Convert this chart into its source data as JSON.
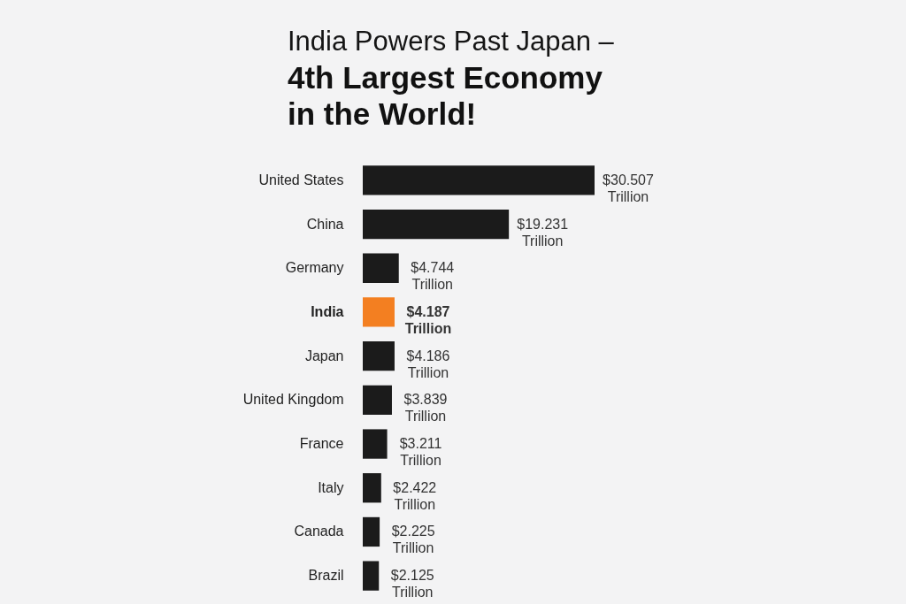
{
  "chart_data": {
    "type": "bar",
    "orientation": "horizontal",
    "title": "India Powers Past Japan –",
    "subtitle": "4th Largest Economy in the World!",
    "categories": [
      "United States",
      "China",
      "Germany",
      "India",
      "Japan",
      "United Kingdom",
      "France",
      "Italy",
      "Canada",
      "Brazil"
    ],
    "values": [
      30.507,
      19.231,
      4.744,
      4.187,
      4.186,
      3.839,
      3.211,
      2.422,
      2.225,
      2.125
    ],
    "colors": [
      "#1b1b1b",
      "#1b1b1b",
      "#1b1b1b",
      "#f37f21",
      "#1b1b1b",
      "#1b1b1b",
      "#1b1b1b",
      "#1b1b1b",
      "#1b1b1b",
      "#1b1b1b"
    ],
    "value_labels": [
      "$30.507 Trillion",
      "$19.231 Trillion",
      "$4.744 Trillion",
      "$4.187 Trillion",
      "$4.186 Trillion",
      "$3.839 Trillion",
      "$3.211 Trillion",
      "$2.422 Trillion",
      "$2.225 Trillion",
      "$2.125 Trillion"
    ],
    "tick_labels": "y"
  }
}
